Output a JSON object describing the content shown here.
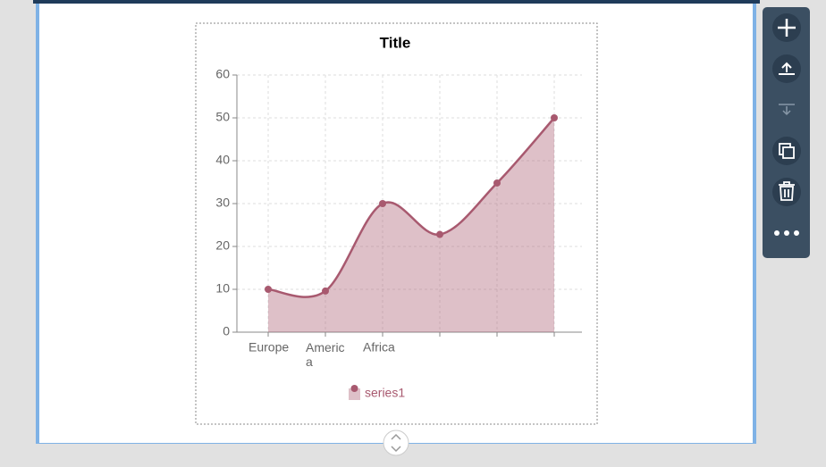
{
  "chart_data": {
    "type": "area",
    "title": "Title",
    "categories": [
      "Europe",
      "America",
      "Africa",
      null,
      null,
      null
    ],
    "series": [
      {
        "name": "series1",
        "color": "#a8596f",
        "values": [
          10,
          9.6,
          30,
          22.8,
          34.8,
          50
        ]
      }
    ],
    "ylim": [
      0,
      60
    ],
    "yticks": [
      0,
      10,
      20,
      30,
      40,
      50,
      60
    ],
    "grid": true,
    "legend": "bottom"
  }
}
